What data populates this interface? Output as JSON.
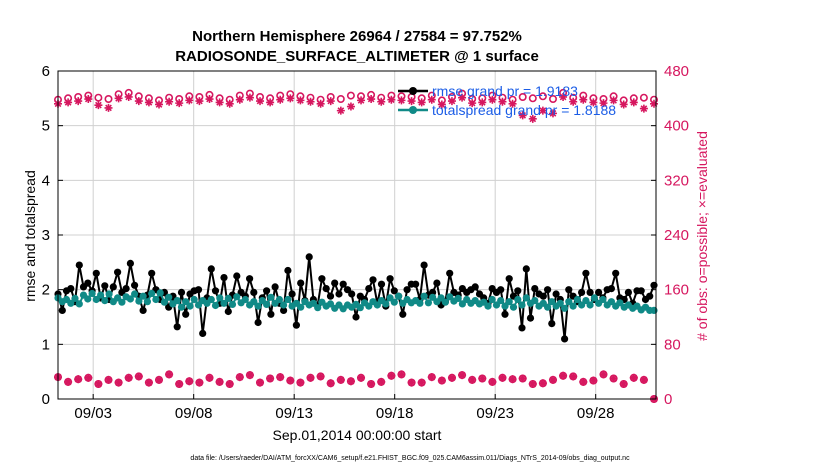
{
  "chart_data": {
    "type": "line",
    "title_line1": "Northern Hemisphere 26964 / 27584 = 97.752%",
    "title_line2": "RADIOSONDE_SURFACE_ALTIMETER @ 1 surface",
    "xlabel": "Sep.01,2014 00:00:00 start",
    "ylabel_left": "rmse and totalspread",
    "ylabel_right": "# of obs: o=possible; ×=evaluated",
    "footer": "data file: /Users/raeder/DAI/ATM_forcXX/CAM6_setup/f.e21.FHIST_BGC.f09_025.CAM6assim.011/Diags_NTrS_2014-09/obs_diag_output.nc",
    "x_ticks": [
      {
        "day": 3,
        "label": "09/03"
      },
      {
        "day": 8,
        "label": "09/08"
      },
      {
        "day": 13,
        "label": "09/13"
      },
      {
        "day": 18,
        "label": "09/18"
      },
      {
        "day": 23,
        "label": "09/23"
      },
      {
        "day": 28,
        "label": "09/28"
      }
    ],
    "xlim": [
      1.25,
      31.0
    ],
    "ylim_left": [
      0,
      6
    ],
    "yticks_left": [
      "0",
      "1",
      "2",
      "3",
      "4",
      "5",
      "6"
    ],
    "ylim_right": [
      0,
      480
    ],
    "yticks_right": [
      "0",
      "80",
      "160",
      "240",
      "320",
      "400",
      "480"
    ],
    "legend": {
      "rmse": "rmse grand pr = 1.9183",
      "spread": "totalspread grand pr = 1.8188",
      "position": "top-right"
    },
    "colors": {
      "rmse": "#000000",
      "spread": "#108a87",
      "counts": "#d6175f"
    },
    "rmse": [
      1.92,
      1.62,
      1.98,
      2.02,
      1.78,
      2.45,
      2.05,
      2.12,
      1.98,
      2.3,
      1.85,
      2.07,
      1.82,
      2.05,
      2.32,
      1.95,
      2.02,
      2.48,
      2.08,
      1.88,
      1.62,
      1.9,
      2.3,
      2.0,
      1.82,
      1.95,
      1.68,
      1.88,
      1.32,
      1.95,
      1.55,
      1.92,
      1.98,
      2.0,
      1.2,
      1.85,
      2.38,
      1.98,
      1.75,
      2.22,
      1.6,
      1.9,
      2.25,
      1.95,
      1.88,
      2.2,
      1.95,
      1.4,
      1.85,
      1.98,
      1.55,
      2.05,
      1.75,
      1.62,
      2.35,
      1.92,
      1.35,
      2.12,
      1.8,
      2.6,
      1.82,
      1.72,
      2.2,
      2.02,
      1.88,
      2.12,
      1.92,
      2.1,
      2.0,
      1.92,
      1.5,
      1.88,
      1.82,
      2.02,
      2.18,
      1.75,
      2.1,
      1.7,
      2.2,
      1.98,
      1.88,
      1.55,
      2.0,
      2.1,
      2.1,
      1.82,
      2.45,
      1.9,
      1.95,
      2.12,
      1.72,
      1.78,
      2.3,
      1.95,
      1.9,
      2.02,
      1.95,
      2.0,
      2.05,
      1.92,
      1.85,
      1.75,
      2.02,
      1.95,
      2.0,
      1.55,
      2.2,
      1.88,
      1.98,
      1.3,
      2.38,
      1.48,
      2.02,
      1.92,
      1.88,
      2.0,
      1.38,
      1.92,
      1.82,
      1.1,
      2.0,
      1.88,
      1.78,
      1.95,
      2.3,
      1.95,
      1.82,
      1.95,
      1.85,
      2.0,
      2.02,
      2.3,
      1.85,
      1.82,
      1.95,
      1.75,
      1.98,
      1.98,
      1.82,
      1.88,
      2.08
    ],
    "totalspread": [
      1.85,
      1.78,
      1.82,
      1.75,
      1.84,
      1.74,
      1.9,
      1.83,
      1.93,
      1.82,
      1.9,
      1.8,
      1.92,
      1.78,
      1.85,
      1.77,
      1.87,
      1.83,
      1.92,
      1.79,
      1.88,
      1.78,
      1.93,
      1.82,
      1.94,
      1.77,
      1.86,
      1.74,
      1.8,
      1.68,
      1.78,
      1.7,
      1.82,
      1.72,
      1.8,
      1.75,
      1.82,
      1.71,
      1.85,
      1.75,
      1.84,
      1.73,
      1.87,
      1.76,
      1.82,
      1.72,
      1.78,
      1.7,
      1.8,
      1.73,
      1.86,
      1.75,
      1.82,
      1.72,
      1.82,
      1.7,
      1.75,
      1.68,
      1.78,
      1.72,
      1.75,
      1.67,
      1.77,
      1.7,
      1.74,
      1.66,
      1.72,
      1.65,
      1.72,
      1.68,
      1.73,
      1.67,
      1.76,
      1.7,
      1.78,
      1.72,
      1.8,
      1.74,
      1.85,
      1.77,
      1.88,
      1.75,
      1.82,
      1.76,
      1.8,
      1.75,
      1.88,
      1.76,
      1.86,
      1.78,
      1.85,
      1.77,
      1.87,
      1.79,
      1.84,
      1.74,
      1.82,
      1.75,
      1.8,
      1.74,
      1.77,
      1.7,
      1.82,
      1.72,
      1.8,
      1.7,
      1.78,
      1.68,
      1.82,
      1.72,
      1.85,
      1.75,
      1.8,
      1.7,
      1.75,
      1.68,
      1.78,
      1.7,
      1.75,
      1.66,
      1.78,
      1.7,
      1.82,
      1.72,
      1.8,
      1.72,
      1.85,
      1.75,
      1.82,
      1.72,
      1.78,
      1.7,
      1.76,
      1.68,
      1.72,
      1.66,
      1.7,
      1.63,
      1.68,
      1.62,
      1.62
    ],
    "obs_possible_low": [
      32,
      25,
      29,
      31,
      22,
      28,
      24,
      31,
      33,
      24,
      28,
      36,
      22,
      26,
      24,
      31,
      25,
      22,
      32,
      35,
      24,
      30,
      32,
      27,
      24,
      31,
      33,
      23,
      28,
      26,
      31,
      22,
      25,
      34,
      36,
      24,
      24,
      32,
      27,
      31,
      35,
      28,
      30,
      25,
      31,
      29,
      30,
      22,
      23,
      28,
      34,
      33,
      25,
      27,
      36,
      30,
      22,
      31,
      28,
      0
    ],
    "obs_possible_high": [
      438,
      440,
      442,
      444,
      441,
      439,
      446,
      448,
      443,
      440,
      437,
      441,
      439,
      443,
      442,
      445,
      440,
      438,
      444,
      447,
      442,
      440,
      444,
      446,
      443,
      441,
      438,
      442,
      439,
      444,
      443,
      445,
      441,
      444,
      443,
      442,
      440,
      444,
      437,
      442,
      447,
      439,
      440,
      444,
      441,
      438,
      442,
      440,
      443,
      439,
      448,
      441,
      444,
      440,
      439,
      443,
      437,
      440,
      441,
      438
    ],
    "obs_evaluated_high": [
      432,
      434,
      436,
      439,
      430,
      426,
      440,
      442,
      436,
      434,
      431,
      435,
      433,
      437,
      436,
      439,
      434,
      432,
      438,
      441,
      436,
      434,
      438,
      440,
      437,
      435,
      432,
      436,
      422,
      428,
      437,
      439,
      435,
      438,
      437,
      436,
      434,
      438,
      431,
      436,
      441,
      433,
      434,
      438,
      435,
      432,
      415,
      410,
      422,
      418,
      442,
      435,
      438,
      434,
      433,
      437,
      431,
      434,
      425,
      432
    ]
  }
}
